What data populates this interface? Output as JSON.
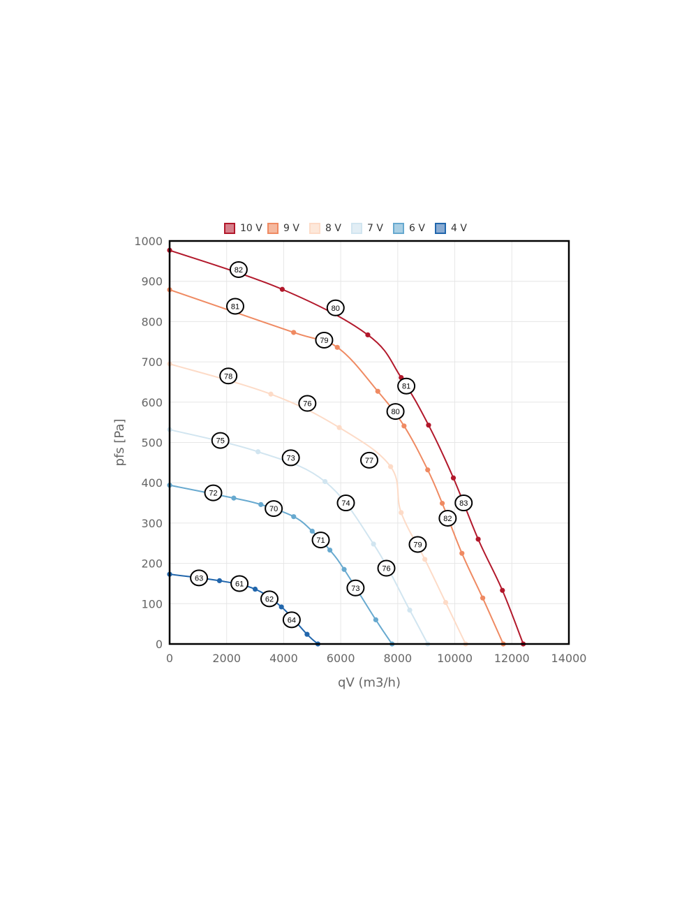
{
  "chart_data": {
    "type": "line",
    "xlabel": "qV (m3/h)",
    "ylabel": "pfs [Pa]",
    "xlim": [
      0,
      14000
    ],
    "ylim": [
      0,
      1000
    ],
    "xticks": [
      0,
      2000,
      4000,
      6000,
      8000,
      10000,
      12000,
      14000
    ],
    "yticks": [
      0,
      100,
      200,
      300,
      400,
      500,
      600,
      700,
      800,
      900,
      1000
    ],
    "grid": true,
    "legend_position": "top",
    "series": [
      {
        "name": "10 V",
        "color": "#b2182b",
        "fill": "#d6808b",
        "points": [
          [
            0,
            977
          ],
          [
            3950,
            880
          ],
          [
            6950,
            767
          ],
          [
            8120,
            661
          ],
          [
            9080,
            543
          ],
          [
            9950,
            412
          ],
          [
            10820,
            260
          ],
          [
            11670,
            133
          ],
          [
            12400,
            0
          ]
        ],
        "annotations": [
          [
            2420,
            929,
            "82"
          ],
          [
            5820,
            834,
            "80"
          ],
          [
            8300,
            640,
            "81"
          ],
          [
            10310,
            350,
            "83"
          ]
        ]
      },
      {
        "name": "9 V",
        "color": "#ef8a62",
        "fill": "#f5b99f",
        "points": [
          [
            0,
            879
          ],
          [
            4350,
            773
          ],
          [
            5880,
            736
          ],
          [
            7300,
            627
          ],
          [
            8220,
            541
          ],
          [
            9050,
            432
          ],
          [
            9560,
            349
          ],
          [
            10250,
            225
          ],
          [
            10980,
            114
          ],
          [
            11700,
            0
          ]
        ],
        "annotations": [
          [
            2300,
            838,
            "81"
          ],
          [
            5420,
            754,
            "79"
          ],
          [
            7920,
            577,
            "80"
          ],
          [
            9750,
            312,
            "82"
          ]
        ]
      },
      {
        "name": "8 V",
        "color": "#fddbc7",
        "fill": "#fde8da",
        "points": [
          [
            0,
            695
          ],
          [
            3550,
            620
          ],
          [
            5950,
            537
          ],
          [
            7750,
            440
          ],
          [
            8120,
            326
          ],
          [
            8950,
            210
          ],
          [
            9680,
            103
          ],
          [
            10380,
            0
          ]
        ],
        "annotations": [
          [
            2060,
            665,
            "78"
          ],
          [
            4830,
            597,
            "76"
          ],
          [
            7000,
            456,
            "77"
          ],
          [
            8700,
            247,
            "79"
          ]
        ]
      },
      {
        "name": "7 V",
        "color": "#d1e5f0",
        "fill": "#e2eef5",
        "points": [
          [
            0,
            532
          ],
          [
            3100,
            477
          ],
          [
            5450,
            403
          ],
          [
            7150,
            248
          ],
          [
            8420,
            84
          ],
          [
            9050,
            0
          ]
        ],
        "annotations": [
          [
            1780,
            505,
            "75"
          ],
          [
            4250,
            462,
            "73"
          ],
          [
            6180,
            350,
            "74"
          ],
          [
            7600,
            188,
            "76"
          ]
        ]
      },
      {
        "name": "6 V",
        "color": "#67a9cf",
        "fill": "#a9cfe4",
        "points": [
          [
            0,
            394
          ],
          [
            2250,
            362
          ],
          [
            3200,
            346
          ],
          [
            4350,
            316
          ],
          [
            5000,
            280
          ],
          [
            5620,
            233
          ],
          [
            6120,
            185
          ],
          [
            7230,
            60
          ],
          [
            7800,
            0
          ]
        ],
        "annotations": [
          [
            1530,
            375,
            "72"
          ],
          [
            3650,
            336,
            "70"
          ],
          [
            5300,
            258,
            "71"
          ],
          [
            6520,
            139,
            "73"
          ]
        ]
      },
      {
        "name": "4 V",
        "color": "#2166ac",
        "fill": "#89abd2",
        "points": [
          [
            0,
            173
          ],
          [
            1750,
            157
          ],
          [
            3000,
            136
          ],
          [
            3920,
            92
          ],
          [
            4820,
            24
          ],
          [
            5200,
            0
          ]
        ],
        "annotations": [
          [
            1030,
            164,
            "63"
          ],
          [
            2450,
            150,
            "61"
          ],
          [
            3500,
            112,
            "62"
          ],
          [
            4280,
            60,
            "64"
          ]
        ]
      }
    ]
  }
}
